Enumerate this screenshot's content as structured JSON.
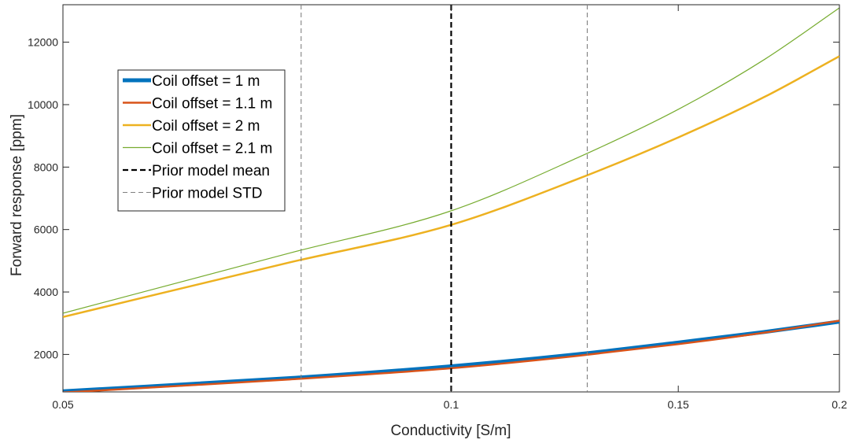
{
  "chart_data": {
    "type": "line",
    "title": "",
    "xlabel": "Conductivity [S/m]",
    "ylabel": "Forward response [ppm]",
    "x_scale": "log",
    "xlim": [
      0.05,
      0.2
    ],
    "ylim": [
      800,
      13200
    ],
    "xticks": [
      0.05,
      0.1,
      0.15,
      0.2
    ],
    "xtick_labels": [
      "0.05",
      "0.1",
      "0.15",
      "0.2"
    ],
    "yticks": [
      2000,
      4000,
      6000,
      8000,
      10000,
      12000
    ],
    "ytick_labels": [
      "2000",
      "4000",
      "6000",
      "8000",
      "10000",
      "12000"
    ],
    "grid": false,
    "legend_position": "upper-left",
    "x": [
      0.05,
      0.075,
      0.1,
      0.125,
      0.15,
      0.175,
      0.2
    ],
    "series": [
      {
        "name": "Coil offset = 1 m",
        "color": "#0072BD",
        "style": "solid",
        "weight": "thick",
        "values": [
          820,
          1240,
          1620,
          2000,
          2380,
          2720,
          3050
        ]
      },
      {
        "name": "Coil offset = 1.1 m",
        "color": "#D95319",
        "style": "solid",
        "weight": "medium",
        "values": [
          780,
          1200,
          1560,
          1950,
          2330,
          2700,
          3080
        ]
      },
      {
        "name": "Coil offset = 2 m",
        "color": "#EDB120",
        "style": "solid",
        "weight": "medium",
        "values": [
          3200,
          4950,
          6150,
          7600,
          8950,
          10250,
          11550
        ]
      },
      {
        "name": "Coil offset = 2.1 m",
        "color": "#77AC30",
        "style": "solid",
        "weight": "thin",
        "values": [
          3320,
          5250,
          6600,
          8280,
          9850,
          11450,
          13100
        ]
      }
    ],
    "reference_lines": [
      {
        "name": "Prior model mean",
        "x": 0.1,
        "color": "#000000",
        "style": "dashed",
        "weight": "thick"
      },
      {
        "name": "Prior model STD",
        "x": [
          0.0765,
          0.1275
        ],
        "color": "#808080",
        "style": "dashed",
        "weight": "thin"
      }
    ]
  }
}
